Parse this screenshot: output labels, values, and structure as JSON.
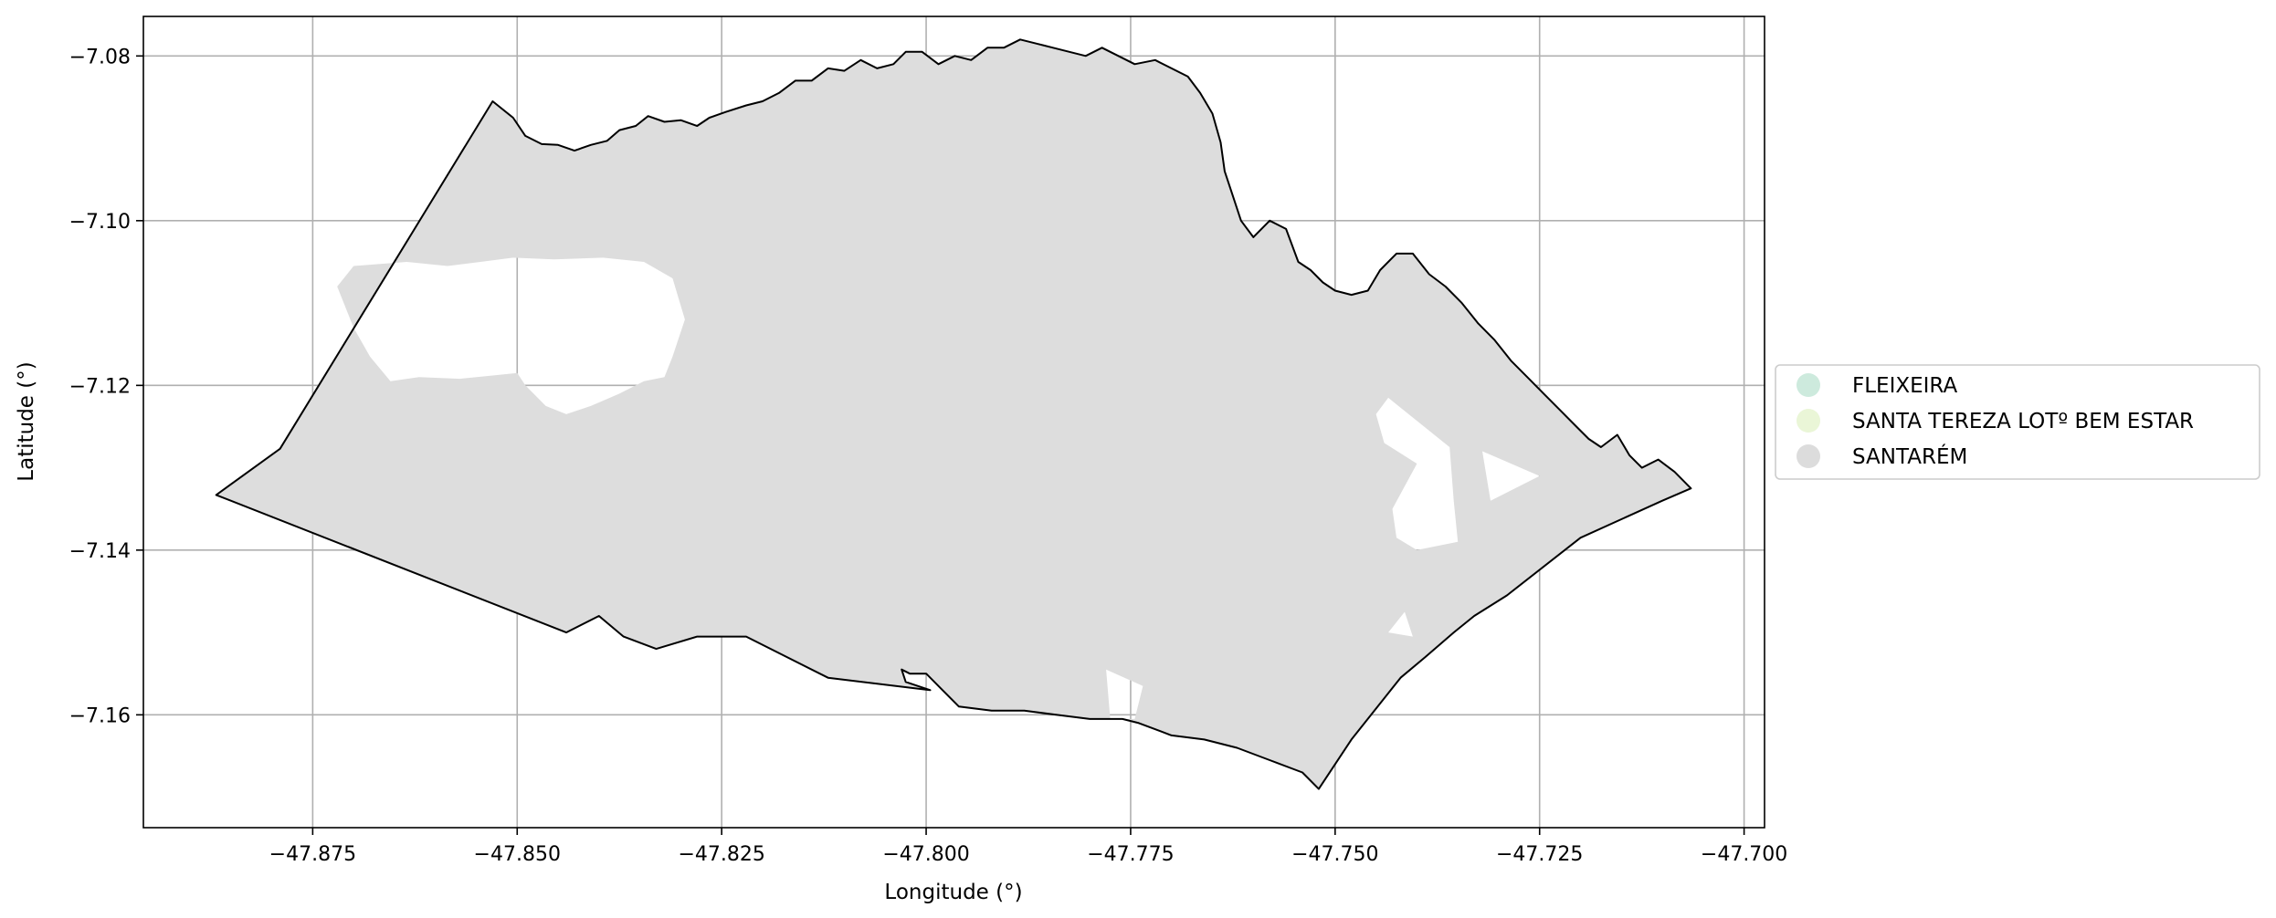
{
  "chart_data": {
    "type": "map",
    "xlabel": "Longitude (°)",
    "ylabel": "Latitude (°)",
    "xlim": [
      -47.8957,
      -47.6975
    ],
    "ylim": [
      -7.1737,
      -7.0752
    ],
    "x_ticks": [
      -47.875,
      -47.85,
      -47.825,
      -47.8,
      -47.775,
      -47.75,
      -47.725,
      -47.7
    ],
    "x_tick_labels": [
      "−47.875",
      "−47.850",
      "−47.825",
      "−47.800",
      "−47.775",
      "−47.750",
      "−47.725",
      "−47.700"
    ],
    "y_ticks": [
      -7.08,
      -7.1,
      -7.12,
      -7.14,
      -7.16
    ],
    "y_tick_labels": [
      "−7.08",
      "−7.10",
      "−7.12",
      "−7.14",
      "−7.16"
    ],
    "grid": true,
    "legend_position": "center-right, outside",
    "legend": [
      {
        "label": "FLEIXEIRA",
        "color": "#cdeadd"
      },
      {
        "label": "SANTA TEREZA LOTº BEM ESTAR",
        "color": "#eaf6d7"
      },
      {
        "label": "SANTARÉM",
        "color": "#dcdcdc"
      }
    ],
    "fill_color": "#dddddd",
    "boundary_color": "#000000",
    "boundary": [
      [
        -47.8868,
        -7.1333
      ],
      [
        -47.879,
        -7.1277
      ],
      [
        -47.853,
        -7.0855
      ],
      [
        -47.8505,
        -7.0875
      ],
      [
        -47.849,
        -7.0897
      ],
      [
        -47.847,
        -7.0907
      ],
      [
        -47.845,
        -7.0908
      ],
      [
        -47.843,
        -7.0915
      ],
      [
        -47.841,
        -7.0908
      ],
      [
        -47.839,
        -7.0903
      ],
      [
        -47.8375,
        -7.089
      ],
      [
        -47.8355,
        -7.0885
      ],
      [
        -47.834,
        -7.0873
      ],
      [
        -47.832,
        -7.088
      ],
      [
        -47.83,
        -7.0878
      ],
      [
        -47.828,
        -7.0885
      ],
      [
        -47.8265,
        -7.0875
      ],
      [
        -47.8245,
        -7.0868
      ],
      [
        -47.822,
        -7.086
      ],
      [
        -47.82,
        -7.0855
      ],
      [
        -47.818,
        -7.0845
      ],
      [
        -47.816,
        -7.083
      ],
      [
        -47.814,
        -7.083
      ],
      [
        -47.812,
        -7.0815
      ],
      [
        -47.81,
        -7.0818
      ],
      [
        -47.808,
        -7.0805
      ],
      [
        -47.806,
        -7.0815
      ],
      [
        -47.804,
        -7.081
      ],
      [
        -47.8025,
        -7.0795
      ],
      [
        -47.8005,
        -7.0795
      ],
      [
        -47.7985,
        -7.081
      ],
      [
        -47.7965,
        -7.08
      ],
      [
        -47.7945,
        -7.0805
      ],
      [
        -47.7925,
        -7.079
      ],
      [
        -47.7905,
        -7.079
      ],
      [
        -47.7885,
        -7.078
      ],
      [
        -47.7865,
        -7.0785
      ],
      [
        -47.7845,
        -7.079
      ],
      [
        -47.7825,
        -7.0795
      ],
      [
        -47.7805,
        -7.08
      ],
      [
        -47.7785,
        -7.079
      ],
      [
        -47.7765,
        -7.08
      ],
      [
        -47.7745,
        -7.081
      ],
      [
        -47.772,
        -7.0805
      ],
      [
        -47.77,
        -7.0815
      ],
      [
        -47.768,
        -7.0825
      ],
      [
        -47.7665,
        -7.0845
      ],
      [
        -47.765,
        -7.087
      ],
      [
        -47.764,
        -7.0905
      ],
      [
        -47.7635,
        -7.094
      ],
      [
        -47.7625,
        -7.097
      ],
      [
        -47.7615,
        -7.1
      ],
      [
        -47.76,
        -7.102
      ],
      [
        -47.758,
        -7.1
      ],
      [
        -47.756,
        -7.101
      ],
      [
        -47.7545,
        -7.105
      ],
      [
        -47.753,
        -7.106
      ],
      [
        -47.7515,
        -7.1075
      ],
      [
        -47.75,
        -7.1085
      ],
      [
        -47.748,
        -7.109
      ],
      [
        -47.746,
        -7.1085
      ],
      [
        -47.7445,
        -7.106
      ],
      [
        -47.7425,
        -7.104
      ],
      [
        -47.7405,
        -7.104
      ],
      [
        -47.7385,
        -7.1065
      ],
      [
        -47.7365,
        -7.108
      ],
      [
        -47.7345,
        -7.11
      ],
      [
        -47.7325,
        -7.1125
      ],
      [
        -47.7305,
        -7.1145
      ],
      [
        -47.7285,
        -7.117
      ],
      [
        -47.7265,
        -7.119
      ],
      [
        -47.7245,
        -7.121
      ],
      [
        -47.7225,
        -7.123
      ],
      [
        -47.7205,
        -7.125
      ],
      [
        -47.719,
        -7.1265
      ],
      [
        -47.7175,
        -7.1275
      ],
      [
        -47.7155,
        -7.126
      ],
      [
        -47.714,
        -7.1285
      ],
      [
        -47.7125,
        -7.13
      ],
      [
        -47.7105,
        -7.129
      ],
      [
        -47.7085,
        -7.1305
      ],
      [
        -47.7065,
        -7.1325
      ],
      [
        -47.71,
        -7.134
      ],
      [
        -47.72,
        -7.1385
      ],
      [
        -47.729,
        -7.1455
      ],
      [
        -47.733,
        -7.148
      ],
      [
        -47.7355,
        -7.15
      ],
      [
        -47.739,
        -7.153
      ],
      [
        -47.742,
        -7.1555
      ],
      [
        -47.748,
        -7.163
      ],
      [
        -47.752,
        -7.169
      ],
      [
        -47.754,
        -7.167
      ],
      [
        -47.758,
        -7.1655
      ],
      [
        -47.762,
        -7.164
      ],
      [
        -47.766,
        -7.163
      ],
      [
        -47.77,
        -7.1625
      ],
      [
        -47.774,
        -7.161
      ],
      [
        -47.776,
        -7.1605
      ],
      [
        -47.78,
        -7.1605
      ],
      [
        -47.784,
        -7.16
      ],
      [
        -47.788,
        -7.1595
      ],
      [
        -47.792,
        -7.1595
      ],
      [
        -47.796,
        -7.159
      ],
      [
        -47.798,
        -7.157
      ],
      [
        -47.8,
        -7.155
      ],
      [
        -47.802,
        -7.155
      ],
      [
        -47.803,
        -7.1545
      ],
      [
        -47.8025,
        -7.156
      ],
      [
        -47.7995,
        -7.157
      ],
      [
        -47.812,
        -7.1555
      ],
      [
        -47.822,
        -7.1505
      ],
      [
        -47.828,
        -7.1505
      ],
      [
        -47.833,
        -7.152
      ],
      [
        -47.837,
        -7.1505
      ],
      [
        -47.84,
        -7.148
      ],
      [
        -47.844,
        -7.15
      ]
    ],
    "holes": [
      [
        [
          -47.8635,
          -7.105
        ],
        [
          -47.8585,
          -7.1055
        ],
        [
          -47.8545,
          -7.105
        ],
        [
          -47.8505,
          -7.1045
        ],
        [
          -47.8455,
          -7.1047
        ],
        [
          -47.8395,
          -7.1045
        ],
        [
          -47.8345,
          -7.105
        ],
        [
          -47.831,
          -7.107
        ],
        [
          -47.8295,
          -7.112
        ],
        [
          -47.831,
          -7.1165
        ],
        [
          -47.832,
          -7.119
        ],
        [
          -47.8345,
          -7.1195
        ],
        [
          -47.8375,
          -7.121
        ],
        [
          -47.841,
          -7.1225
        ],
        [
          -47.844,
          -7.1235
        ],
        [
          -47.8465,
          -7.1225
        ],
        [
          -47.849,
          -7.12
        ],
        [
          -47.85,
          -7.1185
        ],
        [
          -47.853,
          -7.1188
        ],
        [
          -47.857,
          -7.1192
        ],
        [
          -47.862,
          -7.119
        ],
        [
          -47.8655,
          -7.1195
        ],
        [
          -47.868,
          -7.1165
        ],
        [
          -47.87,
          -7.113
        ],
        [
          -47.872,
          -7.108
        ],
        [
          -47.87,
          -7.1055
        ]
      ],
      [
        [
          -47.7435,
          -7.1215
        ],
        [
          -47.736,
          -7.1275
        ],
        [
          -47.7355,
          -7.134
        ],
        [
          -47.735,
          -7.139
        ],
        [
          -47.74,
          -7.14
        ],
        [
          -47.7425,
          -7.1385
        ],
        [
          -47.743,
          -7.135
        ],
        [
          -47.74,
          -7.1295
        ],
        [
          -47.744,
          -7.127
        ],
        [
          -47.745,
          -7.1235
        ]
      ],
      [
        [
          -47.732,
          -7.128
        ],
        [
          -47.725,
          -7.131
        ],
        [
          -47.731,
          -7.134
        ]
      ],
      [
        [
          -47.7415,
          -7.1475
        ],
        [
          -47.7435,
          -7.15
        ],
        [
          -47.7405,
          -7.1505
        ]
      ],
      [
        [
          -47.778,
          -7.1545
        ],
        [
          -47.7735,
          -7.1565
        ],
        [
          -47.7745,
          -7.1605
        ],
        [
          -47.7775,
          -7.1605
        ]
      ]
    ]
  }
}
